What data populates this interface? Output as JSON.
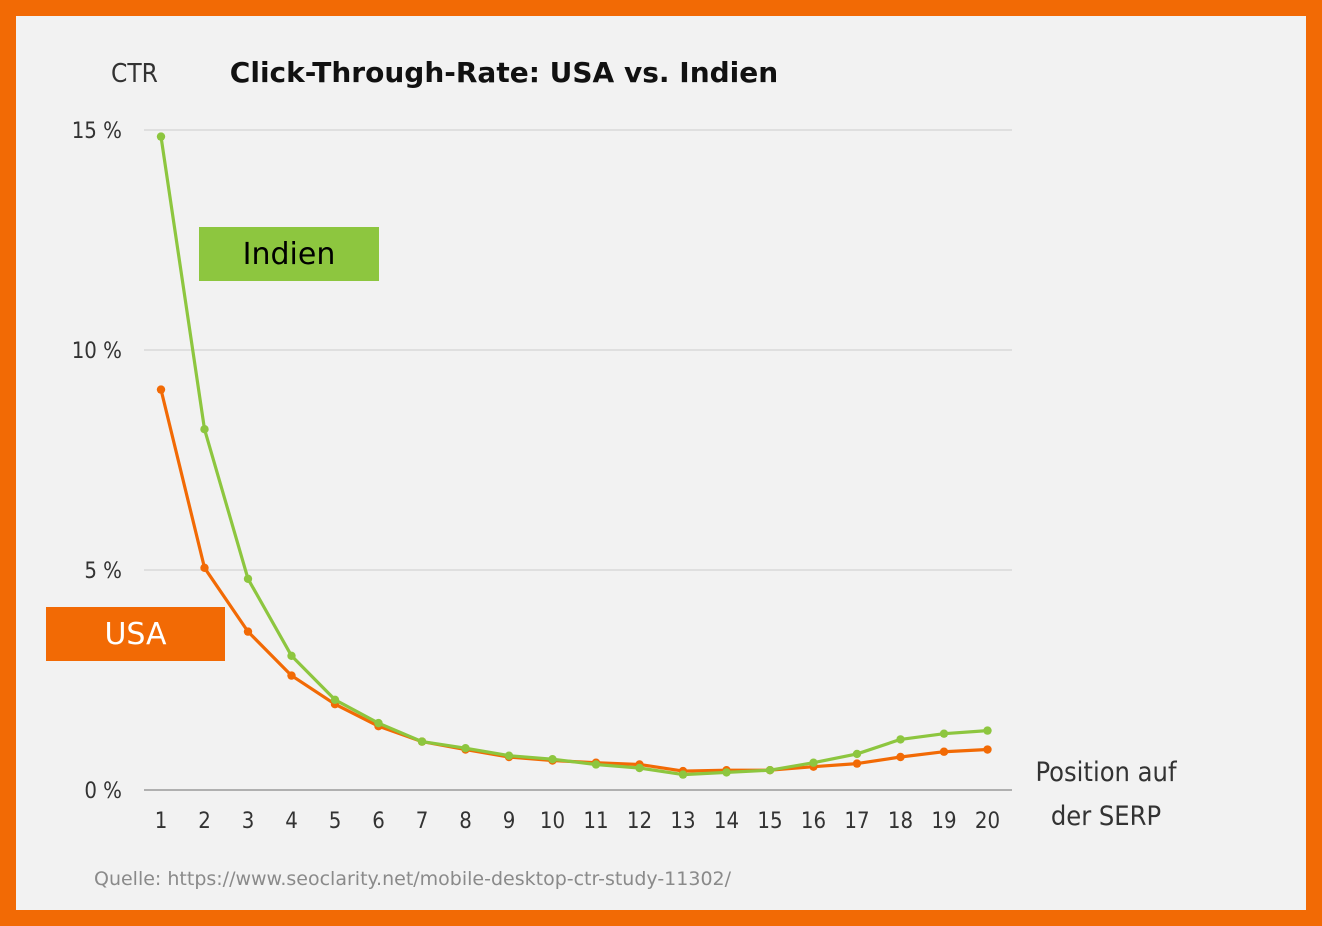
{
  "chart_data": {
    "type": "line",
    "title": "Click-Through-Rate: USA vs. Indien",
    "ylabel": "CTR",
    "xlabel": [
      "Position auf",
      "der SERP"
    ],
    "x": [
      1,
      2,
      3,
      4,
      5,
      6,
      7,
      8,
      9,
      10,
      11,
      12,
      13,
      14,
      15,
      16,
      17,
      18,
      19,
      20
    ],
    "yticks": [
      0,
      5,
      10,
      15
    ],
    "ytick_labels": [
      "0 %",
      "5 %",
      "10 %",
      "15 %"
    ],
    "ylim": [
      0,
      15
    ],
    "grid": true,
    "series": [
      {
        "name": "USA",
        "color": "#f26a05",
        "values": [
          9.1,
          5.05,
          3.6,
          2.6,
          1.95,
          1.45,
          1.1,
          0.92,
          0.75,
          0.67,
          0.62,
          0.58,
          0.43,
          0.45,
          0.45,
          0.53,
          0.6,
          0.75,
          0.87,
          0.92
        ]
      },
      {
        "name": "Indien",
        "color": "#8dc63f",
        "values": [
          14.85,
          8.2,
          4.8,
          3.05,
          2.05,
          1.52,
          1.1,
          0.95,
          0.78,
          0.7,
          0.58,
          0.5,
          0.35,
          0.4,
          0.45,
          0.62,
          0.82,
          1.15,
          1.28,
          1.35
        ]
      }
    ]
  },
  "legend": {
    "indien": {
      "label": "Indien",
      "color": "#8dc63f"
    },
    "usa": {
      "label": "USA",
      "color": "#f26a05"
    }
  },
  "source": "Quelle: https://www.seoclarity.net/mobile-desktop-ctr-study-11302/",
  "colors": {
    "border": "#f26a05",
    "background": "#f2f2f2",
    "gridline": "#cccccc"
  }
}
